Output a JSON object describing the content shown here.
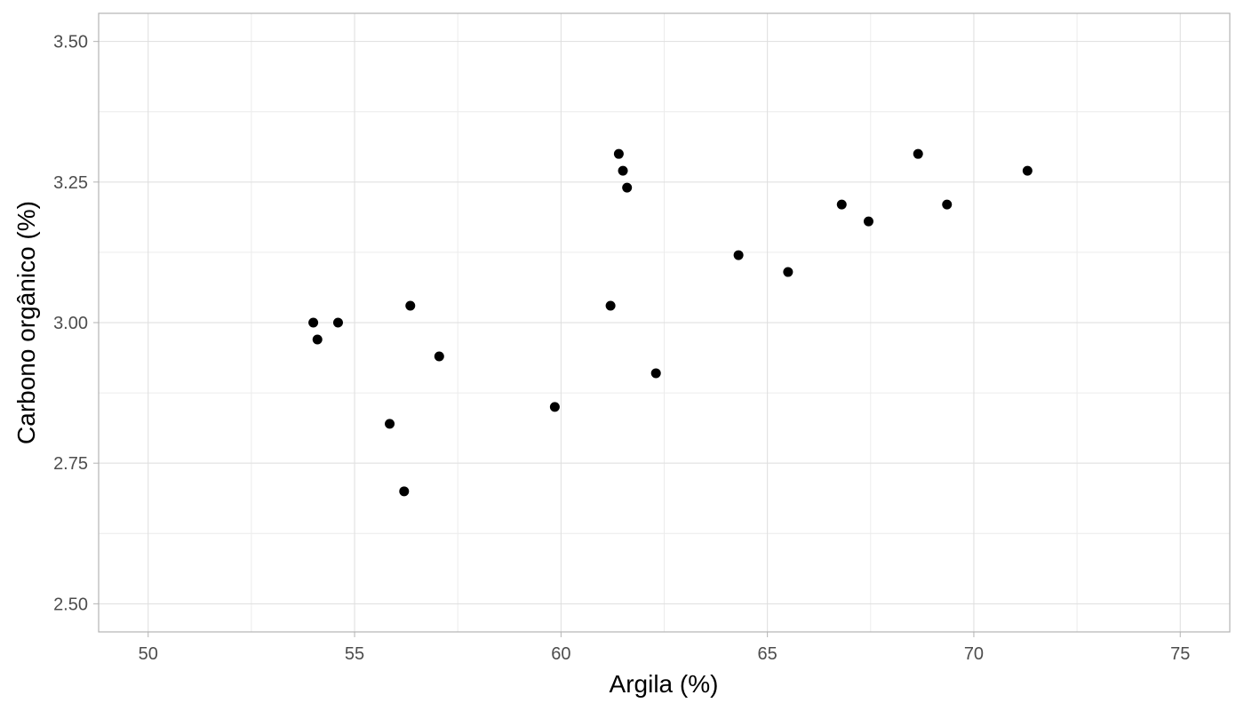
{
  "chart_data": {
    "type": "scatter",
    "xlabel": "Argila (%)",
    "ylabel": "Carbono orgânico (%)",
    "xlim": [
      48.8,
      76.2
    ],
    "ylim": [
      2.45,
      3.55
    ],
    "x_ticks": [
      50,
      55,
      60,
      65,
      70,
      75
    ],
    "x_tick_labels": [
      "50",
      "55",
      "60",
      "65",
      "70",
      "75"
    ],
    "x_minor_ticks": [
      52.5,
      57.5,
      62.5,
      67.5,
      72.5
    ],
    "y_ticks": [
      2.5,
      2.75,
      3.0,
      3.25,
      3.5
    ],
    "y_tick_labels": [
      "2.50",
      "2.75",
      "3.00",
      "3.25",
      "3.50"
    ],
    "y_minor_ticks": [
      2.625,
      2.875,
      3.125,
      3.375
    ],
    "grid": true,
    "theme": "light",
    "point_color": "#000000",
    "points": [
      {
        "x": 54.0,
        "y": 3.0
      },
      {
        "x": 54.1,
        "y": 2.97
      },
      {
        "x": 54.6,
        "y": 3.0
      },
      {
        "x": 55.85,
        "y": 2.82
      },
      {
        "x": 56.2,
        "y": 2.7
      },
      {
        "x": 56.35,
        "y": 3.03
      },
      {
        "x": 57.05,
        "y": 2.94
      },
      {
        "x": 59.85,
        "y": 2.85
      },
      {
        "x": 61.2,
        "y": 3.03
      },
      {
        "x": 61.4,
        "y": 3.3
      },
      {
        "x": 61.5,
        "y": 3.27
      },
      {
        "x": 61.6,
        "y": 3.24
      },
      {
        "x": 62.3,
        "y": 2.91
      },
      {
        "x": 64.3,
        "y": 3.12
      },
      {
        "x": 65.5,
        "y": 3.09
      },
      {
        "x": 66.8,
        "y": 3.21
      },
      {
        "x": 67.45,
        "y": 3.18
      },
      {
        "x": 68.65,
        "y": 3.3
      },
      {
        "x": 69.35,
        "y": 3.21
      },
      {
        "x": 71.3,
        "y": 3.27
      }
    ]
  }
}
